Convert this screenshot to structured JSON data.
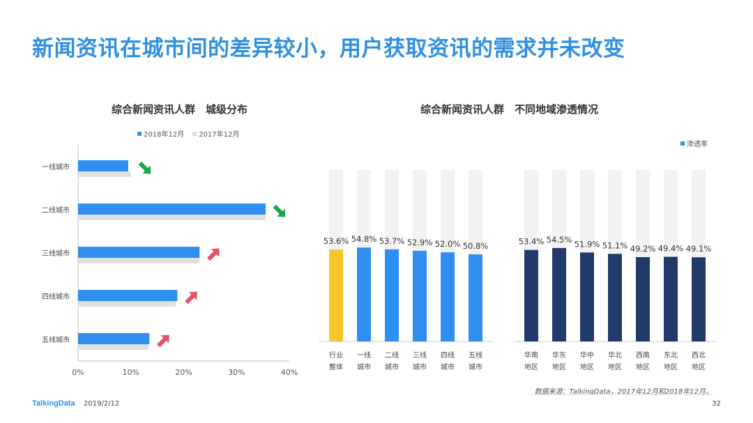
{
  "page": {
    "title": "新闻资讯在城市间的差异较小，用户获取资讯的需求并未改变",
    "footer_logo": "TalkingData",
    "footer_date": "2019/2/12",
    "page_number": "32",
    "source": "数据来源：TalkingData，2017年12月和2018年12月。"
  },
  "colors": {
    "title": "#2f8fe3",
    "bar_2018": "#2e8ff0",
    "bar_2017": "#d9d9d9",
    "industry": "#f8c52d",
    "city": "#2e8ff0",
    "region": "#213a6a",
    "bg_bar": "#f2f2f2",
    "arrow_down": "#1aa64b",
    "arrow_up": "#e8506a"
  },
  "chart_data": [
    {
      "type": "bar",
      "orientation": "horizontal",
      "title": "综合新闻资讯人群　城级分布",
      "categories": [
        "一线城市",
        "二线城市",
        "三线城市",
        "四线城市",
        "五线城市"
      ],
      "series": [
        {
          "name": "2018年12月",
          "values": [
            9.5,
            35.5,
            23.0,
            18.8,
            13.5
          ]
        },
        {
          "name": "2017年12月",
          "values": [
            10.0,
            35.5,
            23.0,
            18.5,
            13.3
          ]
        }
      ],
      "trend": [
        "down",
        "down",
        "up",
        "up",
        "up"
      ],
      "xlim": [
        0,
        40
      ],
      "xticks": [
        "0%",
        "10%",
        "20%",
        "30%",
        "40%"
      ],
      "legend": "top"
    },
    {
      "type": "bar",
      "title": "综合新闻资讯人群　不同地域渗透情况",
      "legend_label": "渗透率",
      "legend": "top-right",
      "ylim": [
        0,
        100
      ],
      "groups": [
        {
          "categories": [
            [
              "行业",
              "整体"
            ],
            [
              "一线",
              "城市"
            ],
            [
              "二线",
              "城市"
            ],
            [
              "三线",
              "城市"
            ],
            [
              "四线",
              "城市"
            ],
            [
              "五线",
              "城市"
            ]
          ],
          "values": [
            53.6,
            54.8,
            53.7,
            52.9,
            52.0,
            50.8
          ],
          "labels": [
            "53.6%",
            "54.8%",
            "53.7%",
            "52.9%",
            "52.0%",
            "50.8%"
          ]
        },
        {
          "categories": [
            [
              "华南",
              "地区"
            ],
            [
              "华东",
              "地区"
            ],
            [
              "华中",
              "地区"
            ],
            [
              "华北",
              "地区"
            ],
            [
              "西南",
              "地区"
            ],
            [
              "东北",
              "地区"
            ],
            [
              "西北",
              "地区"
            ]
          ],
          "values": [
            53.4,
            54.5,
            51.9,
            51.1,
            49.2,
            49.4,
            49.1
          ],
          "labels": [
            "53.4%",
            "54.5%",
            "51.9%",
            "51.1%",
            "49.2%",
            "49.4%",
            "49.1%"
          ]
        }
      ]
    }
  ]
}
